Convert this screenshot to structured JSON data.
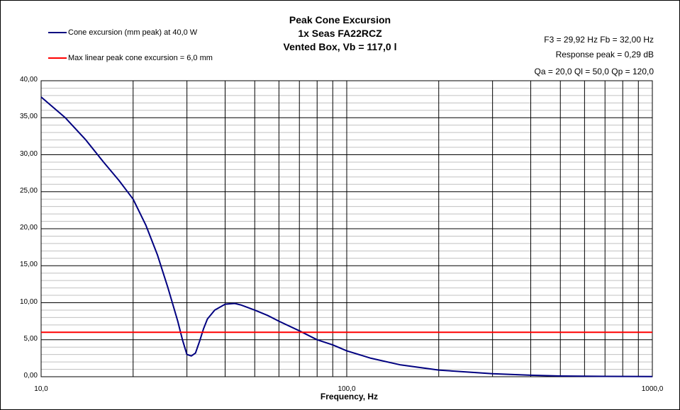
{
  "chart_data": {
    "type": "line",
    "title_lines": [
      "Peak Cone Excursion",
      "1x Seas FA22RCZ",
      "Vented Box, Vb = 117,0 l"
    ],
    "xlabel": "Frequency,  Hz",
    "ylabel": "",
    "x_scale": "log",
    "xlim": [
      10,
      1000
    ],
    "ylim": [
      0,
      40
    ],
    "grid": true,
    "legend_position": "top-left",
    "y_ticks": [
      "0,00",
      "5,00",
      "10,00",
      "15,00",
      "20,00",
      "25,00",
      "30,00",
      "35,00",
      "40,00"
    ],
    "y_tick_values": [
      0,
      5,
      10,
      15,
      20,
      25,
      30,
      35,
      40
    ],
    "x_ticks": [
      "10,0",
      "100,0",
      "1000,0"
    ],
    "x_tick_values": [
      10,
      100,
      1000
    ],
    "info_lines": [
      "F3 = 29,92  Hz   Fb = 32,00  Hz",
      "Response peak = 0,29 dB",
      "Qa = 20,0   Ql = 50,0   Qp = 120,0"
    ],
    "series": [
      {
        "name": "Cone excursion (mm peak) at 40,0 W",
        "color": "#000080",
        "x": [
          10,
          12,
          14,
          16,
          18,
          20,
          22,
          24,
          26,
          28,
          29,
          30,
          31,
          32,
          33,
          34,
          35,
          37,
          40,
          43,
          45,
          50,
          55,
          60,
          70,
          80,
          90,
          100,
          120,
          150,
          200,
          300,
          400,
          500,
          700,
          1000
        ],
        "y": [
          37.8,
          35.0,
          32.0,
          29.0,
          26.5,
          24.0,
          20.5,
          16.5,
          12.0,
          7.5,
          5.0,
          3.0,
          2.8,
          3.2,
          4.8,
          6.5,
          7.8,
          9.0,
          9.8,
          9.9,
          9.7,
          9.0,
          8.3,
          7.5,
          6.2,
          5.0,
          4.3,
          3.5,
          2.5,
          1.6,
          0.9,
          0.4,
          0.2,
          0.1,
          0.05,
          0.02
        ]
      },
      {
        "name": "Max linear peak cone excursion = 6,0 mm",
        "color": "#ff0000",
        "x": [
          10,
          1000
        ],
        "y": [
          6.0,
          6.0
        ]
      }
    ]
  }
}
